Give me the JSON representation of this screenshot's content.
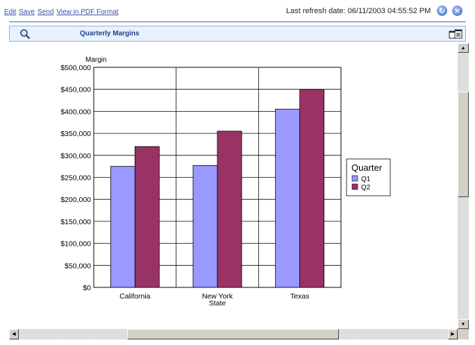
{
  "toolbar": {
    "links": [
      "Edit",
      "Save",
      "Send",
      "View in PDF Format"
    ],
    "last_refresh": "Last refresh date: 06/11/2003 04:55:52 PM"
  },
  "report": {
    "title": "Quarterly Margins"
  },
  "icons": {
    "refresh": "refresh-icon",
    "close": "close-icon",
    "search": "magnifier-icon",
    "window": "window-layout-icon"
  },
  "chart_data": {
    "type": "bar",
    "title": "",
    "ylabel": "Margin",
    "xlabel": "",
    "categories": [
      "California",
      "New York State",
      "Texas"
    ],
    "category_labels": [
      [
        "California"
      ],
      [
        "New York",
        "State"
      ],
      [
        "Texas"
      ]
    ],
    "series": [
      {
        "name": "Q1",
        "values": [
          275000,
          277000,
          405000
        ],
        "color": "#9999ff"
      },
      {
        "name": "Q2",
        "values": [
          320000,
          355000,
          450000
        ],
        "color": "#993366"
      }
    ],
    "ylim": [
      0,
      500000
    ],
    "yticks": [
      "$0",
      "$50,000",
      "$100,000",
      "$150,000",
      "$200,000",
      "$250,000",
      "$300,000",
      "$350,000",
      "$400,000",
      "$450,000",
      "$500,000"
    ],
    "grid": true,
    "legend_title": "Quarter",
    "legend_position": "right"
  }
}
